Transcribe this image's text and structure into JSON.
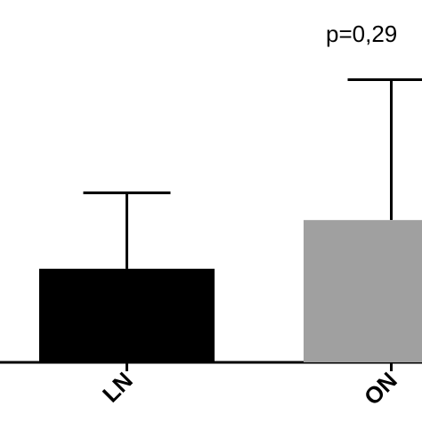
{
  "chart_data": {
    "type": "bar",
    "categories": [
      "LN",
      "ON"
    ],
    "values": [
      100,
      152
    ],
    "errors": [
      81,
      150
    ],
    "colors": [
      "#000000",
      "#a0a0a0"
    ],
    "ylim": [
      0,
      330
    ],
    "annotation": "p=0,29",
    "title": "",
    "xlabel": "",
    "ylabel": ""
  }
}
